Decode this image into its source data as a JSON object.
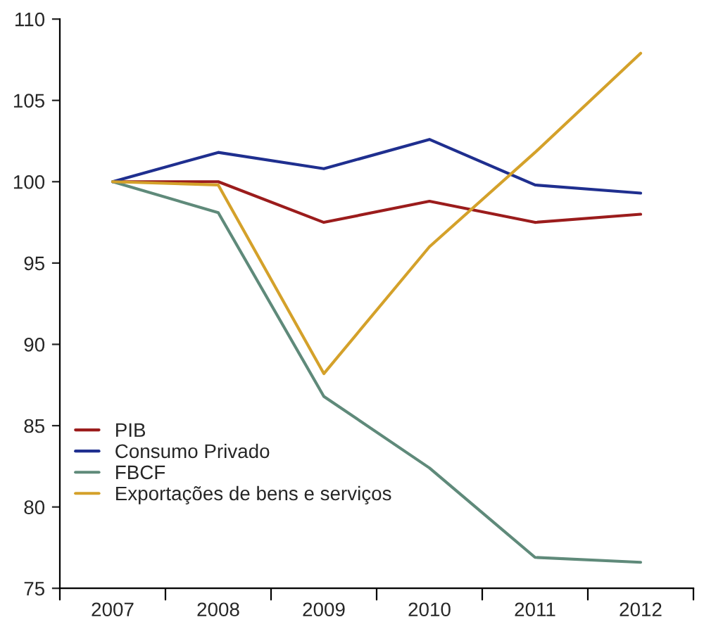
{
  "chart_data": {
    "type": "line",
    "categories": [
      "2007",
      "2008",
      "2009",
      "2010",
      "2011",
      "2012"
    ],
    "series": [
      {
        "name": "PIB",
        "color": "#9b1c1c",
        "values": [
          100,
          100,
          97.5,
          98.8,
          97.5,
          98.0
        ]
      },
      {
        "name": "Consumo Privado",
        "color": "#1f2f8f",
        "values": [
          100,
          101.8,
          100.8,
          102.6,
          99.8,
          99.3
        ]
      },
      {
        "name": "FBCF",
        "color": "#5f8a7a",
        "values": [
          100,
          98.1,
          86.8,
          82.4,
          76.9,
          76.6
        ]
      },
      {
        "name": "Exportações de bens e serviços",
        "color": "#d4a12a",
        "values": [
          100,
          99.8,
          88.2,
          96.0,
          101.8,
          107.9
        ]
      }
    ],
    "ylim": [
      75,
      110
    ],
    "yticks": [
      75,
      80,
      85,
      90,
      95,
      100,
      105,
      110
    ],
    "grid": false,
    "legend": "bottom left",
    "marker": "none",
    "line_style": "solid"
  }
}
